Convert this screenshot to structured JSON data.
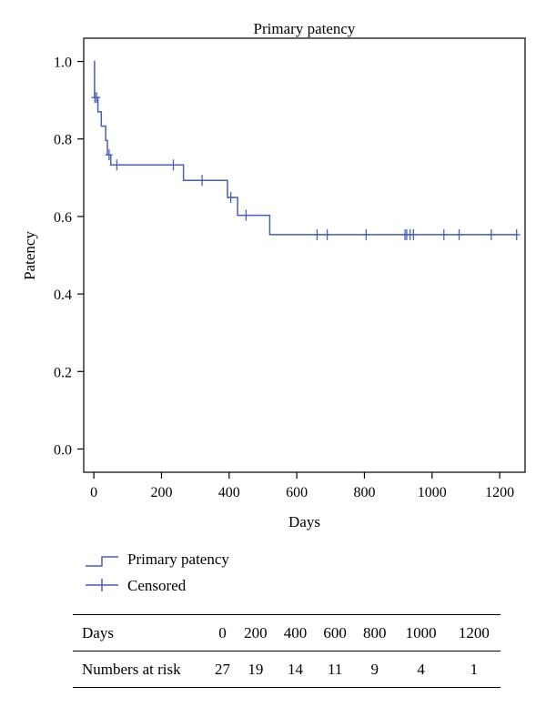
{
  "chart_data": {
    "type": "line",
    "title": "Primary patency",
    "xlabel": "Days",
    "ylabel": "Patency",
    "xlim": [
      -30,
      1275
    ],
    "ylim": [
      -0.06,
      1.06
    ],
    "xticks": [
      0,
      200,
      400,
      600,
      800,
      1000,
      1200
    ],
    "yticks": [
      0.0,
      0.2,
      0.4,
      0.6,
      0.8,
      1.0
    ],
    "ytick_labels": [
      "0.0",
      "0.2",
      "0.4",
      "0.6",
      "0.8",
      "1.0"
    ],
    "grid": false,
    "legend_position": "below",
    "color": "#4a5fb5",
    "series": [
      {
        "name": "Primary patency",
        "style": "step",
        "x": [
          0,
          2,
          12,
          22,
          35,
          40,
          50,
          65,
          265,
          395,
          425,
          520,
          1250
        ],
        "y": [
          1.0,
          0.907,
          0.87,
          0.833,
          0.796,
          0.759,
          0.733,
          0.733,
          0.693,
          0.649,
          0.603,
          0.553,
          0.553
        ]
      },
      {
        "name": "Censored",
        "style": "marker",
        "x": [
          3,
          8,
          45,
          68,
          235,
          320,
          405,
          450,
          660,
          690,
          805,
          920,
          925,
          935,
          945,
          1035,
          1080,
          1175,
          1250
        ],
        "y": [
          0.907,
          0.907,
          0.759,
          0.733,
          0.733,
          0.693,
          0.649,
          0.603,
          0.553,
          0.553,
          0.553,
          0.553,
          0.553,
          0.553,
          0.553,
          0.553,
          0.553,
          0.553,
          0.553
        ]
      }
    ]
  },
  "risk_table": {
    "row1_label": "Days",
    "row1_values": [
      "0",
      "200",
      "400",
      "600",
      "800",
      "1000",
      "1200"
    ],
    "row2_label": "Numbers at risk",
    "row2_values": [
      "27",
      "19",
      "14",
      "11",
      "9",
      "4",
      "1"
    ]
  }
}
